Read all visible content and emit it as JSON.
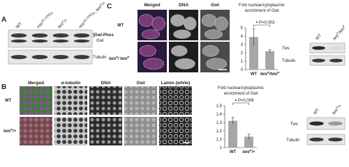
{
  "panel_a": {
    "label": "A",
    "lanes": [
      "WT",
      {
        "parts": [
          {
            "text": "mts"
          },
          {
            "text": "XE-2258",
            "sup": true
          },
          {
            "text": "/+"
          }
        ]
      },
      {
        "parts": [
          {
            "text": "tws"
          },
          {
            "text": "P",
            "sup": true
          },
          {
            "text": "/+"
          }
        ]
      },
      {
        "parts": [
          {
            "text": "mts"
          },
          {
            "text": "XE-2258",
            "sup": true
          },
          {
            "text": "/+; tws"
          },
          {
            "text": "P",
            "sup": true
          },
          {
            "text": "/+"
          }
        ]
      }
    ],
    "blot_labels": [
      "]Gwl-Phos",
      "Gwl",
      "Tubulin"
    ]
  },
  "panel_c": {
    "label": "C",
    "columns": [
      "Merged",
      "DNA",
      "Gwl"
    ],
    "column_colors": [
      "#111111",
      "#1f8c8c",
      "#c0282d"
    ],
    "rows": [
      "WT",
      {
        "parts": [
          {
            "text": "tws"
          },
          {
            "text": "P",
            "sup": true
          },
          {
            "text": "/ tws"
          },
          {
            "text": "P",
            "sup": true
          }
        ]
      }
    ],
    "chart_data": {
      "type": "bar",
      "title_lines": [
        "Fold nuclear/cytoplasmic",
        "enrichment of Gwl"
      ],
      "categories": [
        "WT",
        {
          "parts": [
            {
              "text": "tws"
            },
            {
              "text": "P",
              "sup": true
            },
            {
              "text": "/tws"
            },
            {
              "text": "P",
              "sup": true
            }
          ]
        }
      ],
      "values": [
        3.9,
        2.2
      ],
      "errors": [
        1.0,
        0.2
      ],
      "color": "#a6a6a6",
      "ylim": [
        0,
        5
      ],
      "yticks": [
        0,
        1,
        2,
        3,
        4,
        5
      ],
      "significance": "*",
      "annotation": "P=0.003"
    },
    "blot": {
      "lanes": [
        "WT",
        {
          "parts": [
            {
              "text": "tws"
            },
            {
              "text": "P",
              "sup": true
            },
            {
              "text": "/tws"
            },
            {
              "text": "P",
              "sup": true
            }
          ]
        }
      ],
      "bands": [
        "Tws",
        "Tubulin"
      ]
    }
  },
  "panel_b": {
    "label": "B",
    "columns": [
      "Merged",
      "α-tubulin",
      "DNA",
      "Gwl",
      "Lamin (white)"
    ],
    "column_colors": [
      "#111111",
      "#3a9a3a",
      "#1f8c8c",
      "#c0282d",
      "#111111"
    ],
    "rows": [
      "WT",
      {
        "parts": [
          {
            "text": "tws"
          },
          {
            "text": "P",
            "sup": true
          },
          {
            "text": "/+"
          }
        ]
      }
    ],
    "chart_data": {
      "type": "bar",
      "title_lines": [
        "Fold nuclear/cytoplasmic",
        "enrichment of Gwl"
      ],
      "categories": [
        "WT",
        {
          "parts": [
            {
              "text": "tws"
            },
            {
              "text": "P",
              "sup": true
            },
            {
              "text": "/+"
            }
          ]
        }
      ],
      "values": [
        1.32,
        1.13
      ],
      "errors": [
        0.04,
        0.03
      ],
      "color": "#a6a6a6",
      "ylim": [
        1,
        1.5
      ],
      "yticks": [
        1,
        {
          "value": 1.1,
          "label": "1,1"
        },
        {
          "value": 1.2,
          "label": "1,2"
        },
        {
          "value": 1.3,
          "label": "1,3"
        },
        {
          "value": 1.4,
          "label": "1,4"
        },
        {
          "value": 1.5,
          "label": "1,5"
        }
      ],
      "significance": "*",
      "annotation": "P=0.009"
    },
    "blot": {
      "lanes": [
        "WT",
        {
          "parts": [
            {
              "text": "tws"
            },
            {
              "text": "P",
              "sup": true
            },
            {
              "text": "/+"
            }
          ]
        }
      ],
      "bands": [
        "Tws",
        "Tubulin"
      ]
    }
  }
}
